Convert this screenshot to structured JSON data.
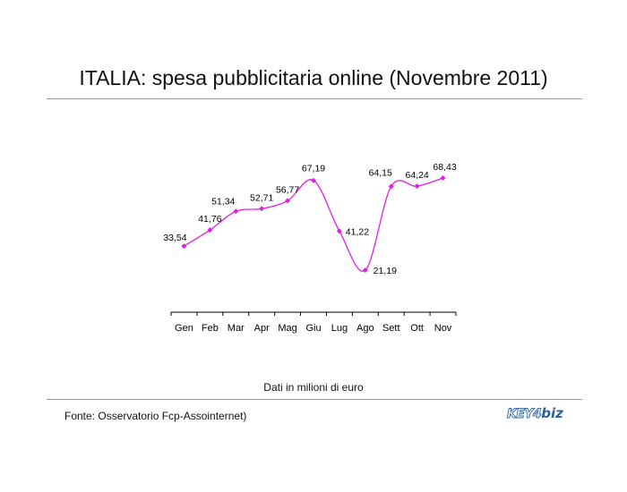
{
  "title": "ITALIA: spesa pubblicitaria online (Novembre 2011)",
  "note": "Dati in milioni di euro",
  "source": "Fonte: Osservatorio Fcp-Assointernet)",
  "logo": {
    "part1": "KEY4",
    "part2": "biz"
  },
  "colors": {
    "series": "#e020e0",
    "axis": "#000000",
    "rule": "#9a9a9a"
  },
  "chart_data": {
    "type": "line",
    "categories": [
      "Gen",
      "Feb",
      "Mar",
      "Apr",
      "Mag",
      "Giu",
      "Lug",
      "Ago",
      "Sett",
      "Ott",
      "Nov"
    ],
    "values": [
      33.54,
      41.76,
      51.34,
      52.71,
      56.77,
      67.19,
      41.22,
      21.19,
      64.15,
      64.24,
      68.43
    ],
    "labels": [
      "33,54",
      "41,76",
      "51,34",
      "52,71",
      "56,77",
      "67,19",
      "41,22",
      "21,19",
      "64,15",
      "64,24",
      "68,43"
    ],
    "smooth": true,
    "marker": "diamond",
    "grid": false,
    "legend": "none",
    "xlabel": "",
    "ylabel": ""
  }
}
